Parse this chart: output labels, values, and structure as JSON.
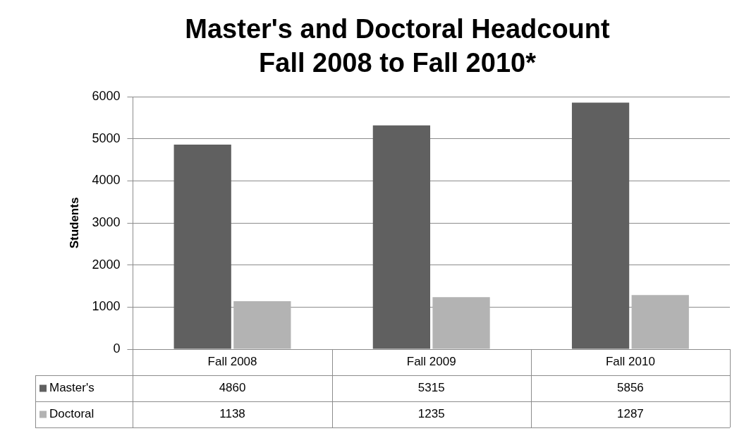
{
  "chart_data": {
    "type": "bar",
    "title": "Master's and Doctoral Headcount\nFall 2008 to Fall 2010*",
    "ylabel": "Students",
    "categories": [
      "Fall 2008",
      "Fall 2009",
      "Fall 2010"
    ],
    "series": [
      {
        "name": "Master's",
        "color": "#606060",
        "values": [
          4860,
          5315,
          5856
        ]
      },
      {
        "name": "Doctoral",
        "color": "#b3b3b3",
        "values": [
          1138,
          1235,
          1287
        ]
      }
    ],
    "ylim": [
      0,
      6000
    ],
    "yticks": [
      0,
      1000,
      2000,
      3000,
      4000,
      5000,
      6000
    ],
    "grid": "y",
    "legend": "bottom",
    "data_labels": true
  }
}
